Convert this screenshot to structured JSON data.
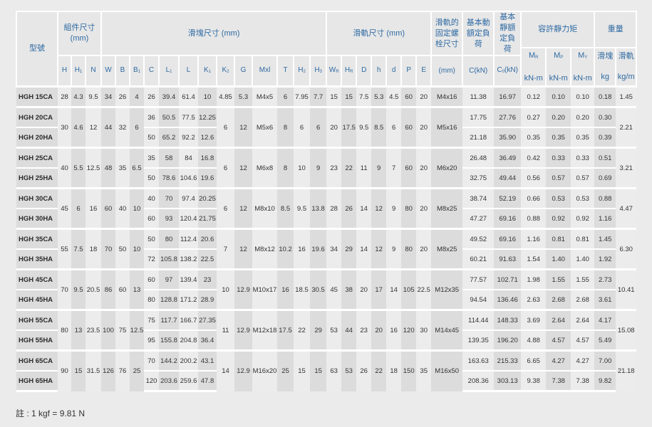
{
  "header": {
    "model": "型號",
    "assembly": "組件尺寸",
    "assembly_unit": "(mm)",
    "block": "滑塊尺寸 (mm)",
    "rail": "滑軌尺寸 (mm)",
    "bolt": "滑軌的固定螺栓尺寸",
    "bolt_unit": "(mm)",
    "dynamic": "基本動額定負荷",
    "dynamic_unit": "C(kN)",
    "static": "基本靜額定負荷",
    "static_unit_base": "C",
    "static_unit_sub": "0",
    "static_unit_tail": "(kN)",
    "moment": "容許靜力矩",
    "moment_cols": [
      {
        "base": "M",
        "sub": "R",
        "unit": "kN-m"
      },
      {
        "base": "M",
        "sub": "P",
        "unit": "kN-m"
      },
      {
        "base": "M",
        "sub": "Y",
        "unit": "kN-m"
      }
    ],
    "weight": "重量",
    "weight_cols": [
      {
        "label": "滑塊",
        "unit": "kg"
      },
      {
        "label": "滑軌",
        "unit": "kg/m"
      }
    ],
    "assembly_cols": [
      [
        "H",
        ""
      ],
      [
        "H",
        "1"
      ],
      [
        "N",
        ""
      ]
    ],
    "block_cols": [
      [
        "W",
        ""
      ],
      [
        "B",
        ""
      ],
      [
        "B",
        "1"
      ],
      [
        "C",
        ""
      ],
      [
        "L",
        "1"
      ],
      [
        "L",
        ""
      ],
      [
        "K",
        "1"
      ],
      [
        "K",
        "2"
      ],
      [
        "G",
        ""
      ],
      [
        "Mxl",
        ""
      ],
      [
        "T",
        ""
      ],
      [
        "H",
        "2"
      ],
      [
        "H",
        "3"
      ]
    ],
    "rail_cols": [
      [
        "W",
        "R"
      ],
      [
        "H",
        "R"
      ],
      [
        "D",
        ""
      ],
      [
        "h",
        ""
      ],
      [
        "d",
        ""
      ],
      [
        "P",
        ""
      ],
      [
        "E",
        ""
      ]
    ]
  },
  "groups": [
    {
      "shared": [
        "28",
        "4.3",
        "9.5",
        "34",
        "26",
        "4",
        "4.85",
        "5.3",
        "M4x5",
        "6",
        "7.95",
        "7.7",
        "15",
        "15",
        "7.5",
        "5.3",
        "4.5",
        "60",
        "20",
        "M4x16",
        "1.45"
      ],
      "variants": [
        [
          "HGH 15CA",
          "26",
          "39.4",
          "61.4",
          "10",
          "11.38",
          "16.97",
          "0.12",
          "0.10",
          "0.10",
          "0.18"
        ]
      ]
    },
    {
      "shared": [
        "30",
        "4.6",
        "12",
        "44",
        "32",
        "6",
        "6",
        "12",
        "M5x6",
        "8",
        "6",
        "6",
        "20",
        "17.5",
        "9.5",
        "8.5",
        "6",
        "60",
        "20",
        "M5x16",
        "2.21"
      ],
      "variants": [
        [
          "HGH 20CA",
          "36",
          "50.5",
          "77.5",
          "12.25",
          "17.75",
          "27.76",
          "0.27",
          "0.20",
          "0.20",
          "0.30"
        ],
        [
          "HGH 20HA",
          "50",
          "65.2",
          "92.2",
          "12.6",
          "21.18",
          "35.90",
          "0.35",
          "0.35",
          "0.35",
          "0.39"
        ]
      ]
    },
    {
      "shared": [
        "40",
        "5.5",
        "12.5",
        "48",
        "35",
        "6.5",
        "6",
        "12",
        "M6x8",
        "8",
        "10",
        "9",
        "23",
        "22",
        "11",
        "9",
        "7",
        "60",
        "20",
        "M6x20",
        "3.21"
      ],
      "variants": [
        [
          "HGH 25CA",
          "35",
          "58",
          "84",
          "16.8",
          "26.48",
          "36.49",
          "0.42",
          "0.33",
          "0.33",
          "0.51"
        ],
        [
          "HGH 25HA",
          "50",
          "78.6",
          "104.6",
          "19.6",
          "32.75",
          "49.44",
          "0.56",
          "0.57",
          "0.57",
          "0.69"
        ]
      ]
    },
    {
      "shared": [
        "45",
        "6",
        "16",
        "60",
        "40",
        "10",
        "6",
        "12",
        "M8x10",
        "8.5",
        "9.5",
        "13.8",
        "28",
        "26",
        "14",
        "12",
        "9",
        "80",
        "20",
        "M8x25",
        "4.47"
      ],
      "variants": [
        [
          "HGH 30CA",
          "40",
          "70",
          "97.4",
          "20.25",
          "38.74",
          "52.19",
          "0.66",
          "0.53",
          "0.53",
          "0.88"
        ],
        [
          "HGH 30HA",
          "60",
          "93",
          "120.4",
          "21.75",
          "47.27",
          "69.16",
          "0.88",
          "0.92",
          "0.92",
          "1.16"
        ]
      ]
    },
    {
      "shared": [
        "55",
        "7.5",
        "18",
        "70",
        "50",
        "10",
        "7",
        "12",
        "M8x12",
        "10.2",
        "16",
        "19.6",
        "34",
        "29",
        "14",
        "12",
        "9",
        "80",
        "20",
        "M8x25",
        "6.30"
      ],
      "variants": [
        [
          "HGH 35CA",
          "50",
          "80",
          "112.4",
          "20.6",
          "49.52",
          "69.16",
          "1.16",
          "0.81",
          "0.81",
          "1.45"
        ],
        [
          "HGH 35HA",
          "72",
          "105.8",
          "138.2",
          "22.5",
          "60.21",
          "91.63",
          "1.54",
          "1.40",
          "1.40",
          "1.92"
        ]
      ]
    },
    {
      "shared": [
        "70",
        "9.5",
        "20.5",
        "86",
        "60",
        "13",
        "10",
        "12.9",
        "M10x17",
        "16",
        "18.5",
        "30.5",
        "45",
        "38",
        "20",
        "17",
        "14",
        "105",
        "22.5",
        "M12x35",
        "10.41"
      ],
      "variants": [
        [
          "HGH 45CA",
          "60",
          "97",
          "139.4",
          "23",
          "77.57",
          "102.71",
          "1.98",
          "1.55",
          "1.55",
          "2.73"
        ],
        [
          "HGH 45HA",
          "80",
          "128.8",
          "171.2",
          "28.9",
          "94.54",
          "136.46",
          "2.63",
          "2.68",
          "2.68",
          "3.61"
        ]
      ]
    },
    {
      "shared": [
        "80",
        "13",
        "23.5",
        "100",
        "75",
        "12.5",
        "11",
        "12.9",
        "M12x18",
        "17.5",
        "22",
        "29",
        "53",
        "44",
        "23",
        "20",
        "16",
        "120",
        "30",
        "M14x45",
        "15.08"
      ],
      "variants": [
        [
          "HGH 55CA",
          "75",
          "117.7",
          "166.7",
          "27.35",
          "114.44",
          "148.33",
          "3.69",
          "2.64",
          "2.64",
          "4.17"
        ],
        [
          "HGH 55HA",
          "95",
          "155.8",
          "204.8",
          "36.4",
          "139.35",
          "196.20",
          "4.88",
          "4.57",
          "4.57",
          "5.49"
        ]
      ]
    },
    {
      "shared": [
        "90",
        "15",
        "31.5",
        "126",
        "76",
        "25",
        "14",
        "12.9",
        "M16x20",
        "25",
        "15",
        "15",
        "63",
        "53",
        "26",
        "22",
        "18",
        "150",
        "35",
        "M16x50",
        "21.18"
      ],
      "variants": [
        [
          "HGH 65CA",
          "70",
          "144.2",
          "200.2",
          "43.1",
          "163.63",
          "215.33",
          "6.65",
          "4.27",
          "4.27",
          "7.00"
        ],
        [
          "HGH 65HA",
          "120",
          "203.6",
          "259.6",
          "47.8",
          "208.36",
          "303.13",
          "9.38",
          "7.38",
          "7.38",
          "9.82"
        ]
      ]
    }
  ],
  "note": "註 : 1 kgf = 9.81 N"
}
